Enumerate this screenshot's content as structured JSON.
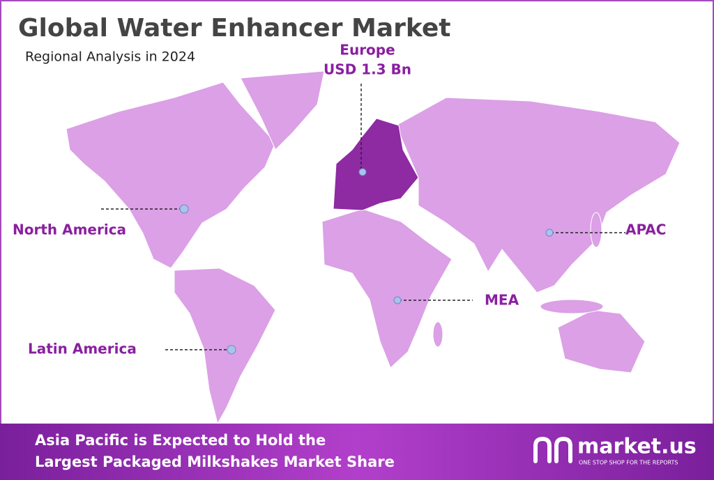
{
  "header": {
    "title": "Global Water Enhancer Market",
    "subtitle": "Regional Analysis in 2024"
  },
  "regions": [
    {
      "label": "Europe",
      "value": "USD 1.3 Bn"
    },
    {
      "label": "North America"
    },
    {
      "label": "APAC"
    },
    {
      "label": "MEA"
    },
    {
      "label": "Latin America"
    }
  ],
  "footer": {
    "lines": [
      "Asia Pacific is Expected to Hold the",
      "Largest Packaged Milkshakes Market Share"
    ],
    "logo": {
      "name": "market.us",
      "tagline": "ONE STOP SHOP FOR THE REPORTS"
    }
  }
}
